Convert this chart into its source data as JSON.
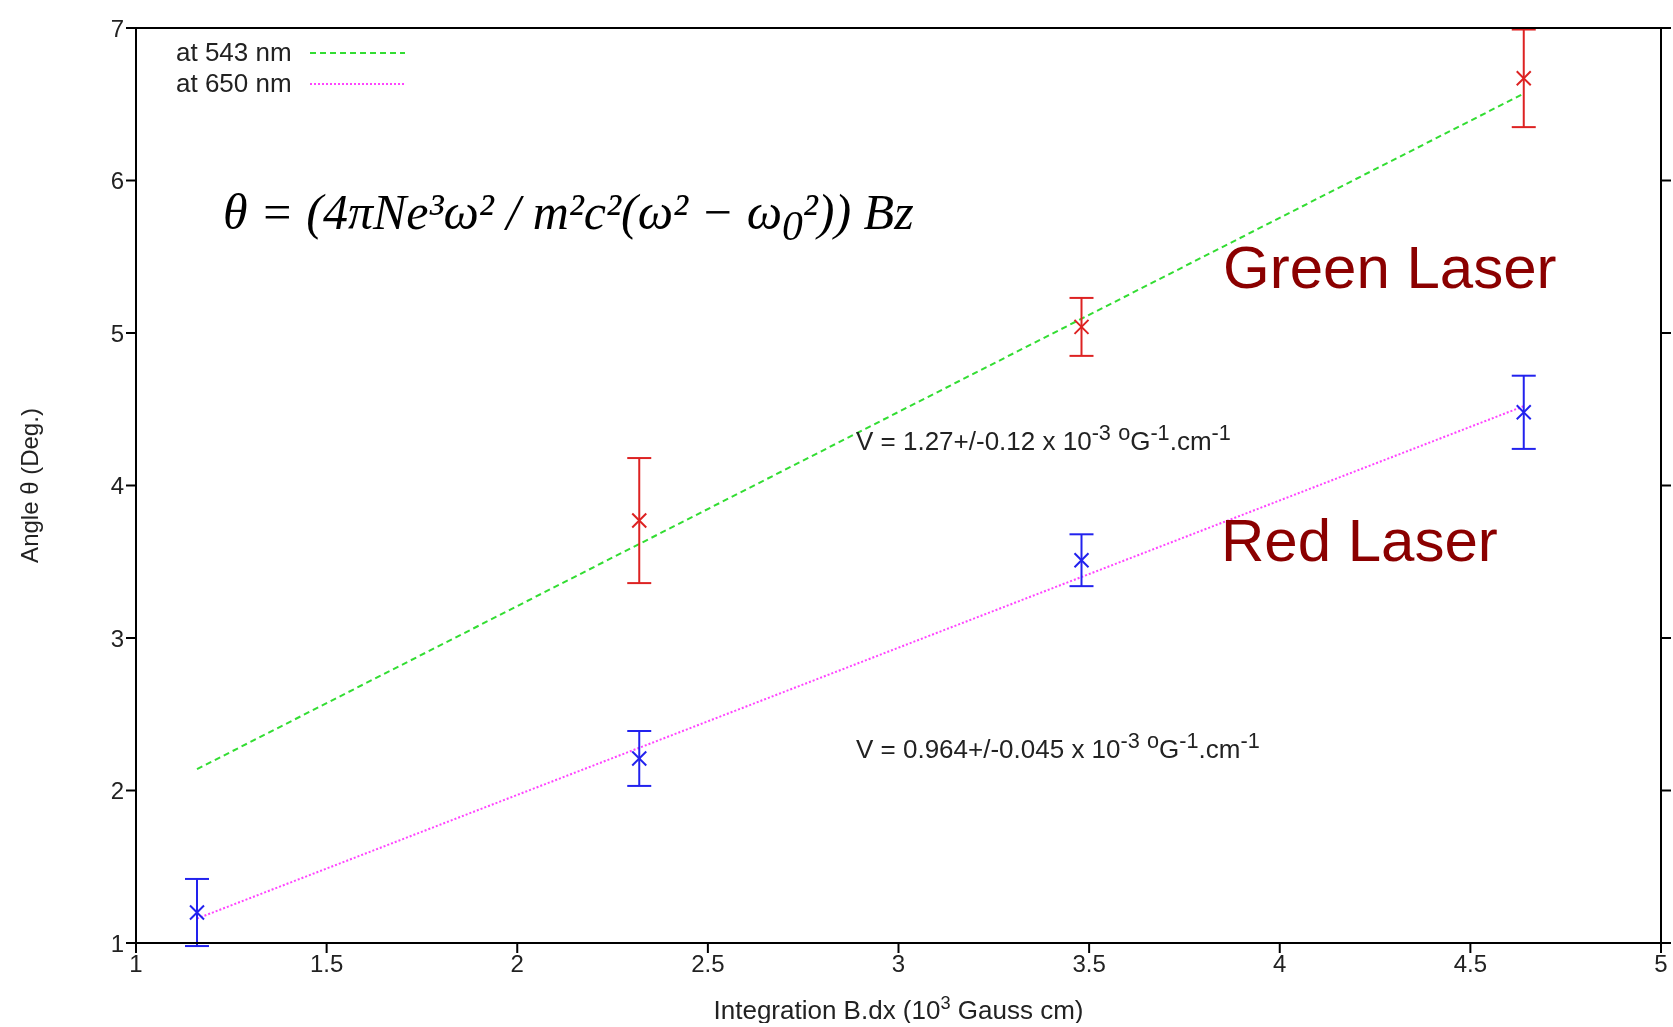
{
  "chart_data": {
    "type": "line",
    "xlabel": "Integration B.dx (10$^{3}$ Gauss cm)",
    "ylabel": "Angle θ (Deg.)",
    "xlim": [
      1,
      5
    ],
    "xticks": [
      1,
      1.5,
      2,
      2.5,
      3,
      3.5,
      4,
      4.5,
      5
    ],
    "ylim": [
      1,
      7
    ],
    "yticks": [
      1,
      2,
      3,
      4,
      5,
      6,
      7
    ],
    "grid": false,
    "legend": "top left",
    "series": [
      {
        "name": "at 543 nm",
        "color": "#33dd33",
        "x": [
          1.16,
          4.64
        ],
        "values": [
          2.14,
          6.57
        ],
        "line_style": "dashed",
        "marker": "none"
      },
      {
        "type": "scatter",
        "color": "#dd2222",
        "x": [
          2.32,
          3.48,
          4.64
        ],
        "values": [
          3.77,
          5.04,
          6.67
        ],
        "errors": [
          0.41,
          0.19,
          0.32
        ],
        "marker": "cross"
      },
      {
        "name": "at 650 nm",
        "color": "#ff44ff",
        "x": [
          1.16,
          4.64
        ],
        "values": [
          1.16,
          4.52
        ],
        "line_style": "dotted",
        "marker": "none"
      },
      {
        "type": "scatter",
        "color": "#2222ee",
        "x": [
          1.16,
          2.32,
          3.48,
          4.64
        ],
        "values": [
          1.2,
          2.21,
          3.51,
          4.48
        ],
        "errors": [
          0.22,
          0.18,
          0.17,
          0.24
        ],
        "marker": "cross"
      }
    ],
    "annotations": [
      "θ = (4πNe³ω² / m²c²(ω² − ω$_{0}$²)) Bz",
      "Green Laser",
      "Red Laser",
      "V = 1.27+/-0.12 x 10$^{-3}$ $^{o}$G$^{-1}$.cm$^{-1}$",
      "V = 0.964+/-0.045 x 10$^{-3}$ $^{o}$G$^{-1}$.cm$^{-1}$"
    ]
  }
}
